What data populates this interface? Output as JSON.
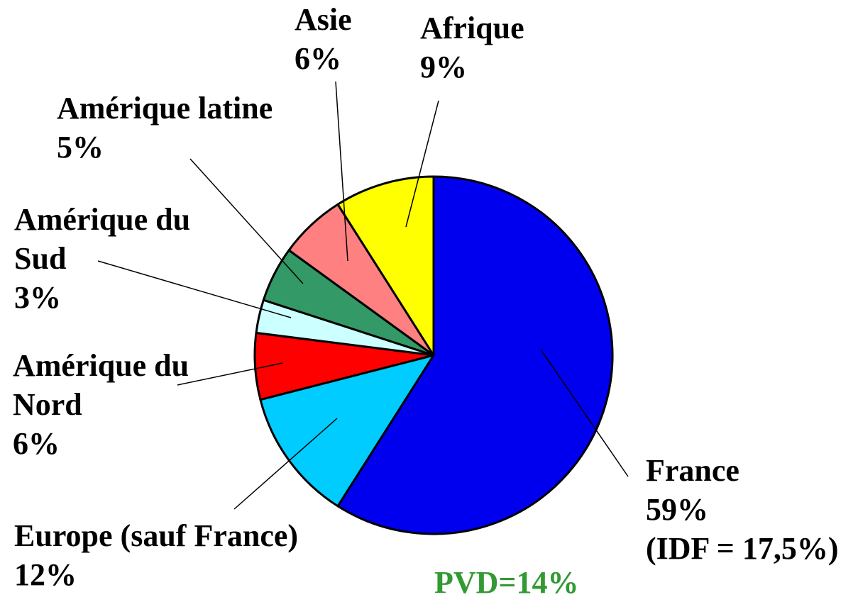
{
  "chart_data": {
    "type": "pie",
    "categories": [
      "France",
      "Europe (sauf France)",
      "Amérique du Nord",
      "Amérique du Sud",
      "Amérique latine",
      "Asie",
      "Afrique"
    ],
    "values": [
      59,
      12,
      6,
      3,
      5,
      6,
      9
    ],
    "value_labels": [
      "59%",
      "12%",
      "6%",
      "3%",
      "5%",
      "6%",
      "9%"
    ],
    "colors": [
      "#0000ee",
      "#00ccff",
      "#ff0000",
      "#ccffff",
      "#339966",
      "#ff8080",
      "#ffff00"
    ],
    "annotations": [
      {
        "text": "(IDF = 17,5%)",
        "color": "#000000"
      },
      {
        "text": "PVD=14%",
        "color": "#339933"
      }
    ]
  }
}
